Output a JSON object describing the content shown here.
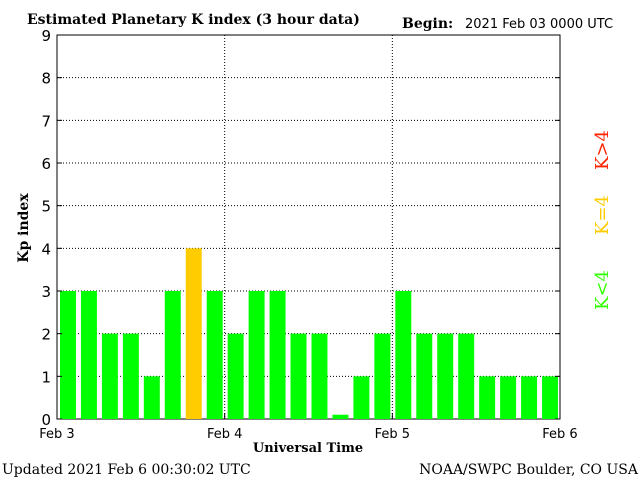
{
  "chart_data": {
    "type": "bar",
    "title": "Estimated Planetary K index (3 hour data)",
    "begin_label": "Begin:",
    "begin_value": "2021 Feb 03 0000 UTC",
    "ylabel": "Kp index",
    "xlabel": "Universal Time",
    "ylim": [
      0,
      9
    ],
    "yticks": [
      "0",
      "1",
      "2",
      "3",
      "4",
      "5",
      "6",
      "7",
      "8",
      "9"
    ],
    "xticks": [
      "Feb 3",
      "Feb 4",
      "Feb 5",
      "Feb 6"
    ],
    "bar_count": 24,
    "values": [
      3,
      3,
      2,
      2,
      1,
      3,
      4,
      3,
      2,
      3,
      3,
      2,
      2,
      0.1,
      1,
      2,
      3,
      2,
      2,
      2,
      1,
      1,
      1,
      1
    ],
    "grid": true,
    "legend": [
      {
        "label": "K<4",
        "color": "#33ff00"
      },
      {
        "label": "K=4",
        "color": "#ffcc00"
      },
      {
        "label": "K>4",
        "color": "#ff2200"
      }
    ],
    "colors": {
      "below": "#00ff00",
      "equal": "#ffcc00",
      "above": "#ff0000"
    }
  },
  "footer": {
    "updated": "Updated 2021 Feb  6 00:30:02 UTC",
    "source": "NOAA/SWPC Boulder, CO USA"
  }
}
